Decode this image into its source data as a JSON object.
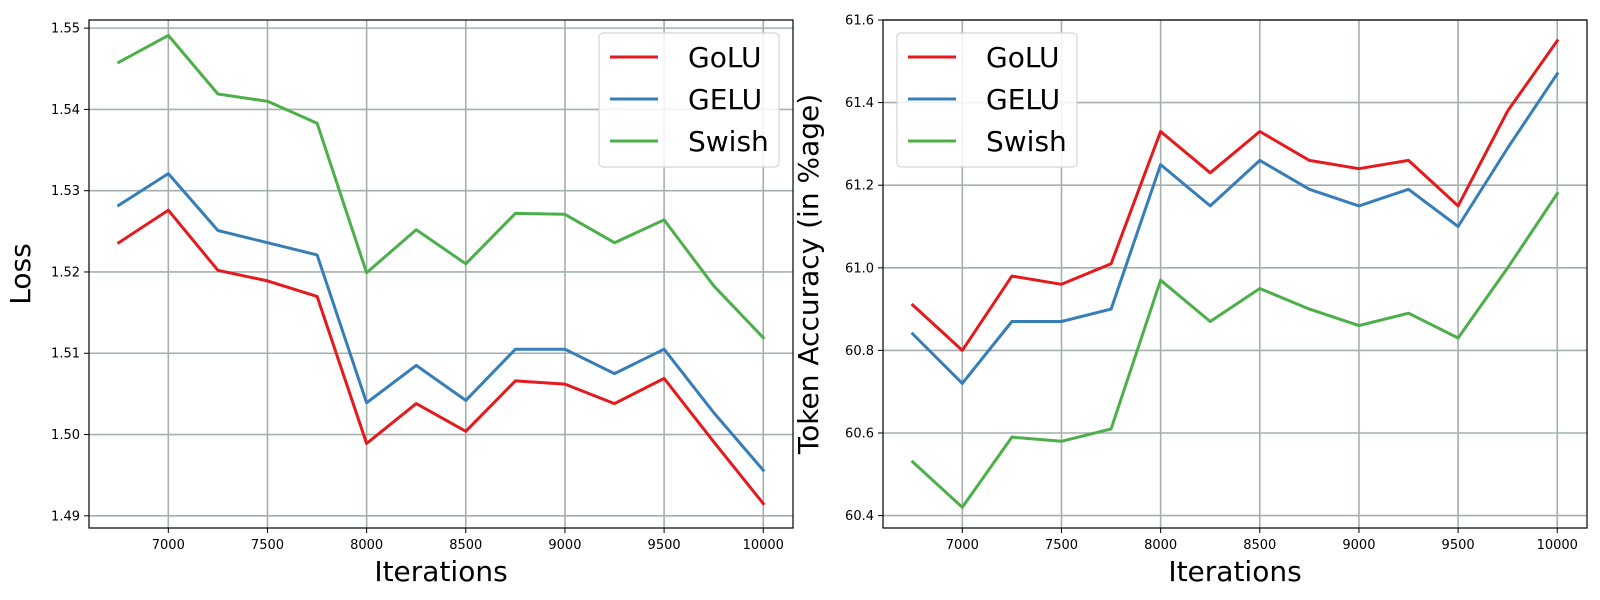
{
  "chart_data": [
    {
      "type": "line",
      "title": "",
      "xlabel": "Iterations",
      "ylabel": "Loss",
      "xlim": [
        6600,
        10150
      ],
      "ylim": [
        1.4885,
        1.551
      ],
      "xticks": [
        7000,
        7500,
        8000,
        8500,
        9000,
        9500,
        10000
      ],
      "yticks": [
        1.49,
        1.5,
        1.51,
        1.52,
        1.53,
        1.54,
        1.55
      ],
      "ytick_labels": [
        "1.49",
        "1.50",
        "1.51",
        "1.52",
        "1.53",
        "1.54",
        "1.55"
      ],
      "grid": true,
      "legend": "top-right",
      "x": [
        6750,
        7000,
        7250,
        7500,
        7750,
        8000,
        8250,
        8500,
        8750,
        9000,
        9250,
        9500,
        9750,
        10000
      ],
      "series": [
        {
          "name": "GoLU",
          "color": "#e41a1c",
          "values": [
            1.5236,
            1.5276,
            1.5202,
            1.5189,
            1.517,
            1.4989,
            1.5038,
            1.5004,
            1.5066,
            1.5062,
            1.5038,
            1.5069,
            1.4991,
            1.4915
          ]
        },
        {
          "name": "GELU",
          "color": "#377eb8",
          "values": [
            1.5282,
            1.5321,
            1.5251,
            1.5236,
            1.5221,
            1.5039,
            1.5085,
            1.5042,
            1.5105,
            1.5105,
            1.5075,
            1.5105,
            1.5027,
            1.4956
          ]
        },
        {
          "name": "Swish",
          "color": "#4daf4a",
          "values": [
            1.5458,
            1.5491,
            1.5419,
            1.541,
            1.5383,
            1.5199,
            1.5252,
            1.521,
            1.5272,
            1.5271,
            1.5236,
            1.5264,
            1.5183,
            1.5119
          ]
        }
      ]
    },
    {
      "type": "line",
      "title": "",
      "xlabel": "Iterations",
      "ylabel": "Token Accuracy (in %age)",
      "xlim": [
        6600,
        10150
      ],
      "ylim": [
        60.37,
        61.6
      ],
      "xticks": [
        7000,
        7500,
        8000,
        8500,
        9000,
        9500,
        10000
      ],
      "yticks": [
        60.4,
        60.6,
        60.8,
        61.0,
        61.2,
        61.4,
        61.6
      ],
      "ytick_labels": [
        "60.4",
        "60.6",
        "60.8",
        "61.0",
        "61.2",
        "61.4",
        "61.6"
      ],
      "grid": true,
      "legend": "top-left",
      "x": [
        6750,
        7000,
        7250,
        7500,
        7750,
        8000,
        8250,
        8500,
        8750,
        9000,
        9250,
        9500,
        9750,
        10000
      ],
      "series": [
        {
          "name": "GoLU",
          "color": "#e41a1c",
          "values": [
            60.91,
            60.8,
            60.98,
            60.96,
            61.01,
            61.33,
            61.23,
            61.33,
            61.26,
            61.24,
            61.26,
            61.15,
            61.38,
            61.55
          ]
        },
        {
          "name": "GELU",
          "color": "#377eb8",
          "values": [
            60.84,
            60.72,
            60.87,
            60.87,
            60.9,
            61.25,
            61.15,
            61.26,
            61.19,
            61.15,
            61.19,
            61.1,
            61.29,
            61.47
          ]
        },
        {
          "name": "Swish",
          "color": "#4daf4a",
          "values": [
            60.53,
            60.42,
            60.59,
            60.58,
            60.61,
            60.97,
            60.87,
            60.95,
            60.9,
            60.86,
            60.89,
            60.83,
            61.0,
            61.18
          ]
        }
      ]
    }
  ]
}
